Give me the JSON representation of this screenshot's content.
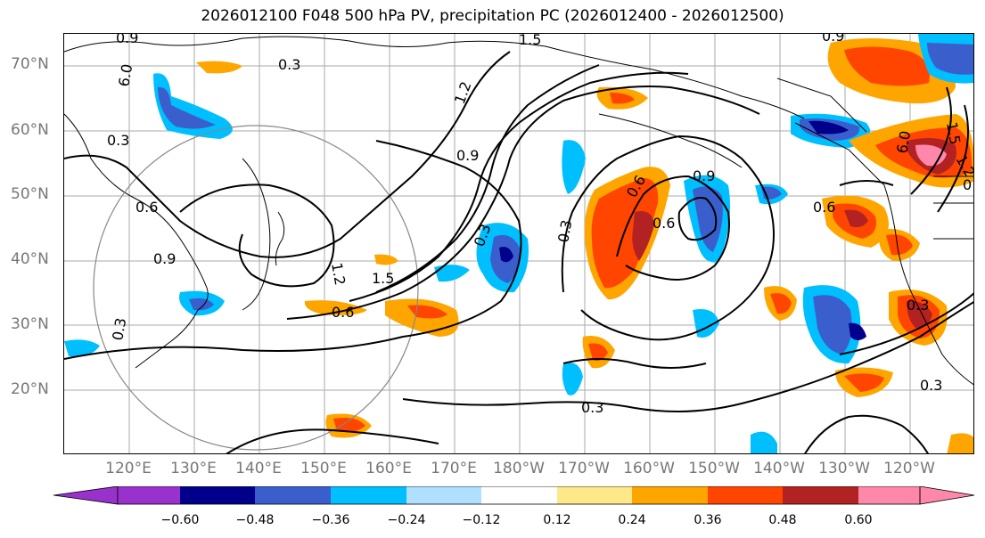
{
  "title": "2026012100 F048 500 hPa PV, precipitation PC (2026012400 - 2026012500)",
  "lat_labels": [
    "70°N",
    "60°N",
    "50°N",
    "40°N",
    "30°N",
    "20°N"
  ],
  "lon_labels": [
    "120°E",
    "130°E",
    "140°E",
    "150°E",
    "160°E",
    "170°E",
    "180°W",
    "170°W",
    "160°W",
    "150°W",
    "140°W",
    "130°W",
    "120°W"
  ],
  "contour_labels": [
    "0.9",
    "1.5",
    "0.9",
    "0.3",
    "6.0",
    "0.3",
    "1.2",
    "0.9",
    "0.6",
    "0.9",
    "1.2",
    "1.5",
    "0.6",
    "0.3",
    "0.3",
    "0.6",
    "0.9",
    "0.3",
    "0.3",
    "0.3",
    "0.6",
    "1.5",
    "6.0",
    "0.3",
    "0.6",
    "1.2",
    "0"
  ],
  "colorbar": {
    "ticks": [
      "−0.60",
      "−0.48",
      "−0.36",
      "−0.24",
      "−0.12",
      "0.12",
      "0.24",
      "0.36",
      "0.48",
      "0.60"
    ],
    "colors": [
      "#9932cc",
      "#00008b",
      "#3a5fcd",
      "#00bfff",
      "#b0e0ff",
      "#ffffff",
      "#ffe88a",
      "#ffa500",
      "#ff4500",
      "#b22222",
      "#ff88aa"
    ]
  },
  "chart_data": {
    "type": "heatmap",
    "title": "2026012100 F048 500 hPa PV, precipitation PC (2026012400 - 2026012500)",
    "lat_range": [
      10,
      75
    ],
    "lon_range": [
      110,
      250
    ],
    "color_levels": [
      -0.6,
      -0.48,
      -0.36,
      -0.24,
      -0.12,
      0.12,
      0.24,
      0.36,
      0.48,
      0.6
    ],
    "contour_levels_pv": [
      0.3,
      0.6,
      0.9,
      1.2,
      1.5
    ]
  }
}
